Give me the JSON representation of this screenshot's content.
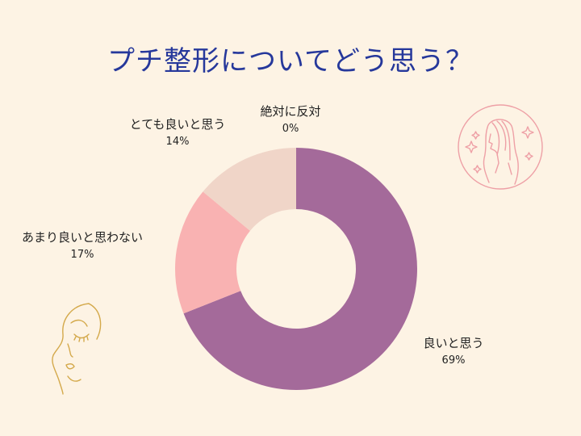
{
  "title": "プチ整形についてどう思う？",
  "chart_data": {
    "type": "donut",
    "title": "プチ整形についてどう思う？",
    "categories": [
      "良いと思う",
      "あまり良いと思わない",
      "とても良いと思う",
      "絶対に反対"
    ],
    "values": [
      69,
      17,
      14,
      0
    ],
    "value_labels": [
      "69%",
      "17%",
      "14%",
      "0%"
    ],
    "colors": [
      "#a46a9a",
      "#f9b2b2",
      "#f0d5c8",
      "#8d5b86"
    ],
    "legend": "none"
  }
}
